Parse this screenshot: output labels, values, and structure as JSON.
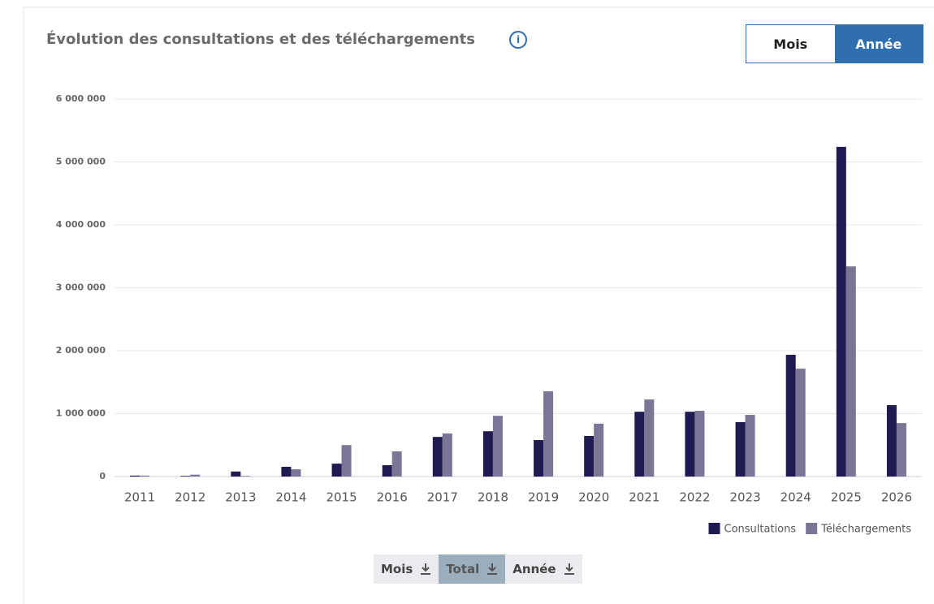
{
  "title": "Évolution des consultations et des téléchargements",
  "info_icon": "i",
  "toggle": [
    "Mois",
    "Année"
  ],
  "downloads": [
    "Mois",
    "Total",
    "Année"
  ],
  "chart_data": {
    "type": "bar",
    "categories": [
      "2011",
      "2012",
      "2013",
      "2014",
      "2015",
      "2016",
      "2017",
      "2018",
      "2019",
      "2020",
      "2021",
      "2022",
      "2023",
      "2024",
      "2025",
      "2026"
    ],
    "series": [
      {
        "name": "Consultations",
        "color": "#1f1a4f",
        "values": [
          15000,
          10000,
          80000,
          155000,
          205000,
          180000,
          630000,
          720000,
          580000,
          645000,
          1030000,
          1030000,
          865000,
          1935000,
          5240000,
          1135000
        ]
      },
      {
        "name": "Téléchargements",
        "color": "#7b7696",
        "values": [
          15000,
          30000,
          10000,
          115000,
          500000,
          400000,
          685000,
          965000,
          1355000,
          840000,
          1225000,
          1045000,
          980000,
          1715000,
          3340000,
          850000
        ]
      }
    ],
    "ylim": [
      0,
      6000000
    ],
    "yticks": [
      0,
      {
        "value": 1000000,
        "label": "1 000 000"
      },
      {
        "value": 2000000,
        "label": "2 000 000"
      },
      {
        "value": 3000000,
        "label": "3 000 000"
      },
      {
        "value": 4000000,
        "label": "4 000 000"
      },
      {
        "value": 5000000,
        "label": "5 000 000"
      },
      {
        "value": 6000000,
        "label": "6 000 000"
      }
    ],
    "grid": true,
    "legend": "bottom-right"
  }
}
